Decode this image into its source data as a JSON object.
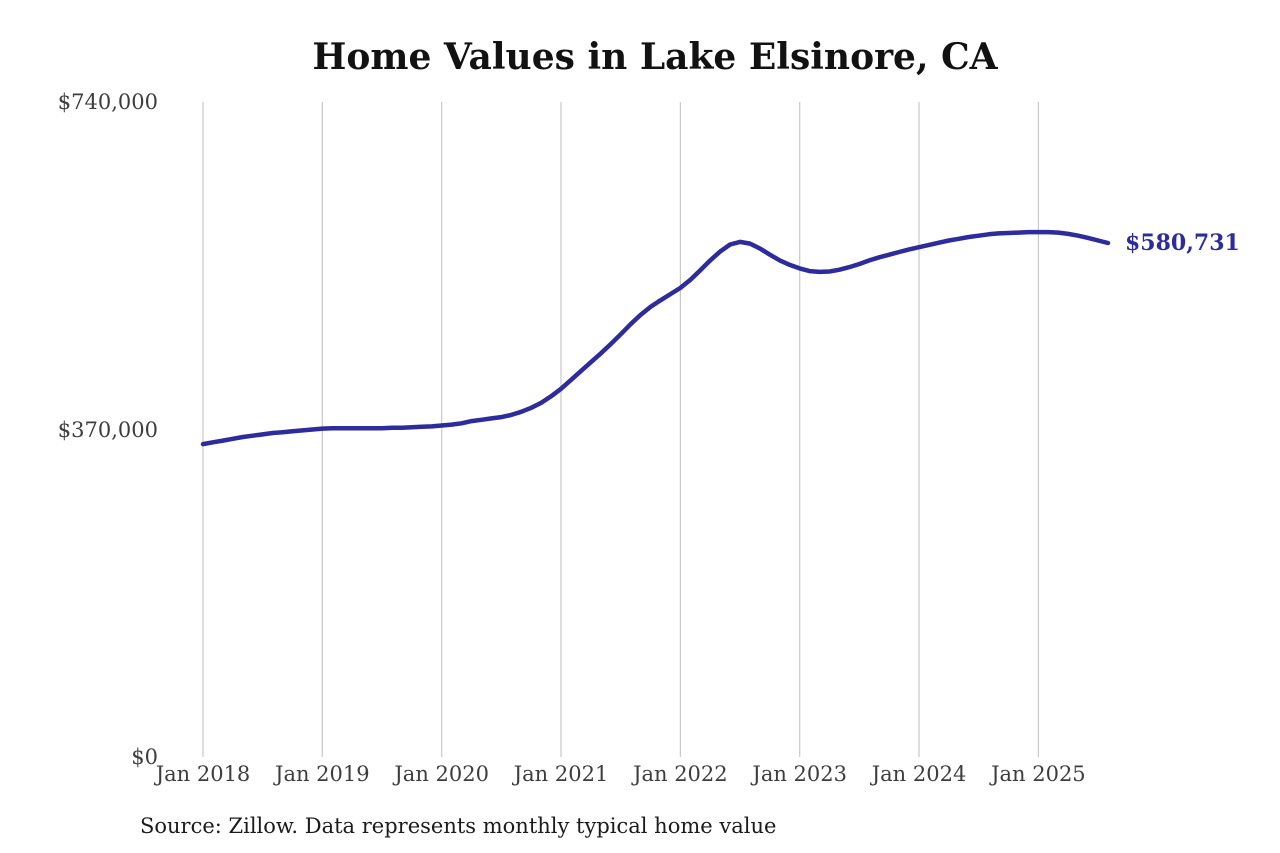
{
  "chart_data": {
    "type": "line",
    "title": "Home Values in Lake Elsinore, CA",
    "source": "Source: Zillow. Data represents monthly typical home value",
    "end_label": "$580,731",
    "end_value": 580731,
    "line_color": "#2e2b9c",
    "grid_color": "#c9c9c9",
    "axis_text_color": "#3d3d3d",
    "ylim": [
      0,
      740000
    ],
    "grid": "vertical-only",
    "legend": "none",
    "y_ticks": [
      {
        "value": 740000,
        "label": "$740,000"
      },
      {
        "value": 370000,
        "label": "$370,000"
      },
      {
        "value": 0,
        "label": "$0"
      }
    ],
    "x_tick_labels": [
      "Jan 2018",
      "Jan 2019",
      "Jan 2020",
      "Jan 2021",
      "Jan 2022",
      "Jan 2023",
      "Jan 2024",
      "Jan 2025"
    ],
    "x": [
      "2018-01",
      "2018-02",
      "2018-03",
      "2018-04",
      "2018-05",
      "2018-06",
      "2018-07",
      "2018-08",
      "2018-09",
      "2018-10",
      "2018-11",
      "2018-12",
      "2019-01",
      "2019-02",
      "2019-03",
      "2019-04",
      "2019-05",
      "2019-06",
      "2019-07",
      "2019-08",
      "2019-09",
      "2019-10",
      "2019-11",
      "2019-12",
      "2020-01",
      "2020-02",
      "2020-03",
      "2020-04",
      "2020-05",
      "2020-06",
      "2020-07",
      "2020-08",
      "2020-09",
      "2020-10",
      "2020-11",
      "2020-12",
      "2021-01",
      "2021-02",
      "2021-03",
      "2021-04",
      "2021-05",
      "2021-06",
      "2021-07",
      "2021-08",
      "2021-09",
      "2021-10",
      "2021-11",
      "2021-12",
      "2022-01",
      "2022-02",
      "2022-03",
      "2022-04",
      "2022-05",
      "2022-06",
      "2022-07",
      "2022-08",
      "2022-09",
      "2022-10",
      "2022-11",
      "2022-12",
      "2023-01",
      "2023-02",
      "2023-03",
      "2023-04",
      "2023-05",
      "2023-06",
      "2023-07",
      "2023-08",
      "2023-09",
      "2023-10",
      "2023-11",
      "2023-12",
      "2024-01",
      "2024-02",
      "2024-03",
      "2024-04",
      "2024-05",
      "2024-06",
      "2024-07",
      "2024-08",
      "2024-09",
      "2024-10",
      "2024-11",
      "2024-12",
      "2025-01",
      "2025-02",
      "2025-03",
      "2025-04",
      "2025-05",
      "2025-06",
      "2025-07",
      "2025-08"
    ],
    "series": [
      {
        "name": "Monthly typical home value",
        "values": [
          353500,
          355500,
          357500,
          359500,
          361500,
          363000,
          364500,
          366000,
          367000,
          368000,
          369000,
          370000,
          371000,
          371500,
          371500,
          371500,
          371500,
          371500,
          371500,
          372000,
          372000,
          372500,
          373000,
          373500,
          374500,
          375500,
          377000,
          379500,
          381000,
          382500,
          384000,
          386500,
          390000,
          394500,
          400000,
          407500,
          416000,
          426000,
          436000,
          446000,
          456000,
          466500,
          477500,
          489000,
          499500,
          508500,
          516000,
          523000,
          530000,
          539000,
          550000,
          561000,
          571000,
          579000,
          582000,
          580000,
          574500,
          567500,
          561000,
          556000,
          552000,
          549000,
          548000,
          548500,
          550500,
          553500,
          557000,
          561000,
          564500,
          567500,
          570500,
          573500,
          576000,
          578500,
          581000,
          583500,
          585500,
          587500,
          589000,
          590500,
          591500,
          592000,
          592500,
          593000,
          593000,
          593000,
          592500,
          591000,
          589000,
          586500,
          583500,
          580731
        ]
      }
    ]
  }
}
